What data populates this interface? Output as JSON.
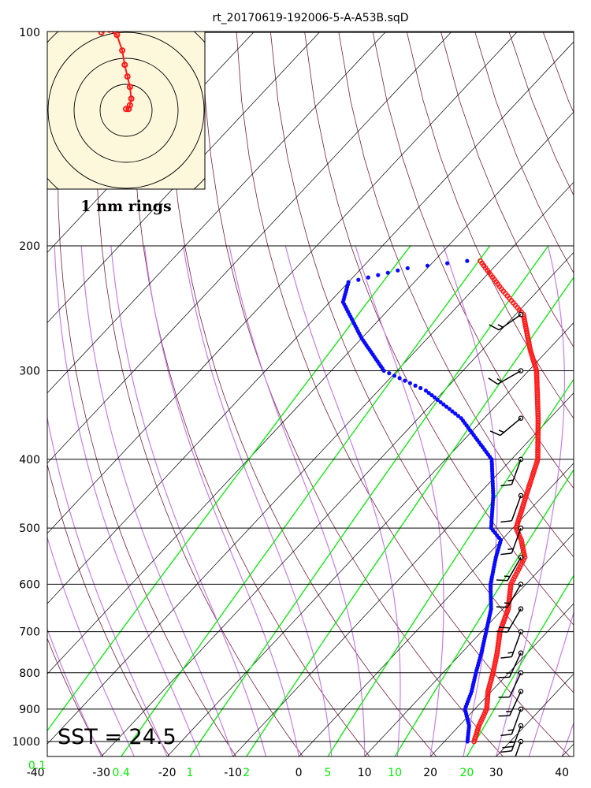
{
  "chart_data": {
    "type": "skew-t",
    "title": "rt_20170619-192006-5-A-A53B.sqD",
    "pressure_ticks": [
      100,
      200,
      300,
      400,
      500,
      600,
      700,
      800,
      900,
      1000
    ],
    "temperature_ticks": [
      -40,
      -30,
      -20,
      -10,
      0,
      10,
      20,
      30,
      40
    ],
    "mixing_ratio_labels": [
      "0.1",
      "0.4",
      "1",
      "2",
      "5",
      "10",
      "20"
    ],
    "plim": [
      1050,
      100
    ],
    "tlim": [
      -40,
      40
    ],
    "annotation": "SST = 24.5",
    "hodograph_label": "1 nm rings",
    "series": [
      {
        "kind": "temperature",
        "color": "#ff1a1a",
        "points": [
          [
            1000,
            24.5
          ],
          [
            950,
            23.0
          ],
          [
            900,
            21.8
          ],
          [
            850,
            19.5
          ],
          [
            800,
            17.6
          ],
          [
            750,
            15.4
          ],
          [
            700,
            12.8
          ],
          [
            650,
            10.8
          ],
          [
            600,
            7.7
          ],
          [
            550,
            6.0
          ],
          [
            520,
            3.0
          ],
          [
            500,
            0.5
          ],
          [
            450,
            -2.6
          ],
          [
            400,
            -6.0
          ],
          [
            350,
            -11.8
          ],
          [
            300,
            -18.8
          ],
          [
            280,
            -22.8
          ],
          [
            250,
            -28.8
          ],
          [
            230,
            -35.8
          ],
          [
            210,
            -43.0
          ]
        ]
      },
      {
        "kind": "dewpoint",
        "color": "#0a0aff",
        "points": [
          [
            1000,
            23.5
          ],
          [
            950,
            21.5
          ],
          [
            900,
            18.5
          ],
          [
            850,
            17.0
          ],
          [
            800,
            15.0
          ],
          [
            750,
            13.0
          ],
          [
            700,
            10.7
          ],
          [
            650,
            8.2
          ],
          [
            600,
            4.6
          ],
          [
            550,
            1.6
          ],
          [
            520,
            -0.1
          ],
          [
            500,
            -3.3
          ],
          [
            450,
            -7.6
          ],
          [
            400,
            -13.0
          ],
          [
            350,
            -23.5
          ],
          [
            320,
            -32.8
          ],
          [
            300,
            -42.0
          ],
          [
            270,
            -50.0
          ],
          [
            240,
            -58.0
          ],
          [
            225,
            -60.0
          ],
          [
            215,
            -53.0
          ],
          [
            210,
            -45.0
          ]
        ]
      }
    ],
    "wind_barbs": [
      {
        "p": 1000,
        "dir": 200,
        "spd": 30
      },
      {
        "p": 950,
        "dir": 200,
        "spd": 25
      },
      {
        "p": 900,
        "dir": 200,
        "spd": 15
      },
      {
        "p": 850,
        "dir": 205,
        "spd": 15
      },
      {
        "p": 800,
        "dir": 205,
        "spd": 10
      },
      {
        "p": 750,
        "dir": 205,
        "spd": 15
      },
      {
        "p": 700,
        "dir": 200,
        "spd": 15
      },
      {
        "p": 650,
        "dir": 210,
        "spd": 20
      },
      {
        "p": 600,
        "dir": 210,
        "spd": 15
      },
      {
        "p": 550,
        "dir": 210,
        "spd": 15
      },
      {
        "p": 500,
        "dir": 200,
        "spd": 15
      },
      {
        "p": 450,
        "dir": 200,
        "spd": 10
      },
      {
        "p": 400,
        "dir": 200,
        "spd": 15
      },
      {
        "p": 350,
        "dir": 230,
        "spd": 15
      },
      {
        "p": 300,
        "dir": 240,
        "spd": 15
      },
      {
        "p": 250,
        "dir": 235,
        "spd": 15
      }
    ],
    "hodograph_track": [
      [
        0.0,
        0.05
      ],
      [
        0.1,
        0.05
      ],
      [
        0.15,
        0.2
      ],
      [
        0.2,
        0.45
      ],
      [
        0.15,
        0.9
      ],
      [
        0.05,
        1.3
      ],
      [
        -0.05,
        1.75
      ],
      [
        -0.15,
        2.3
      ],
      [
        -0.35,
        2.9
      ],
      [
        -0.65,
        3.1
      ],
      [
        -0.95,
        3.0
      ]
    ]
  }
}
